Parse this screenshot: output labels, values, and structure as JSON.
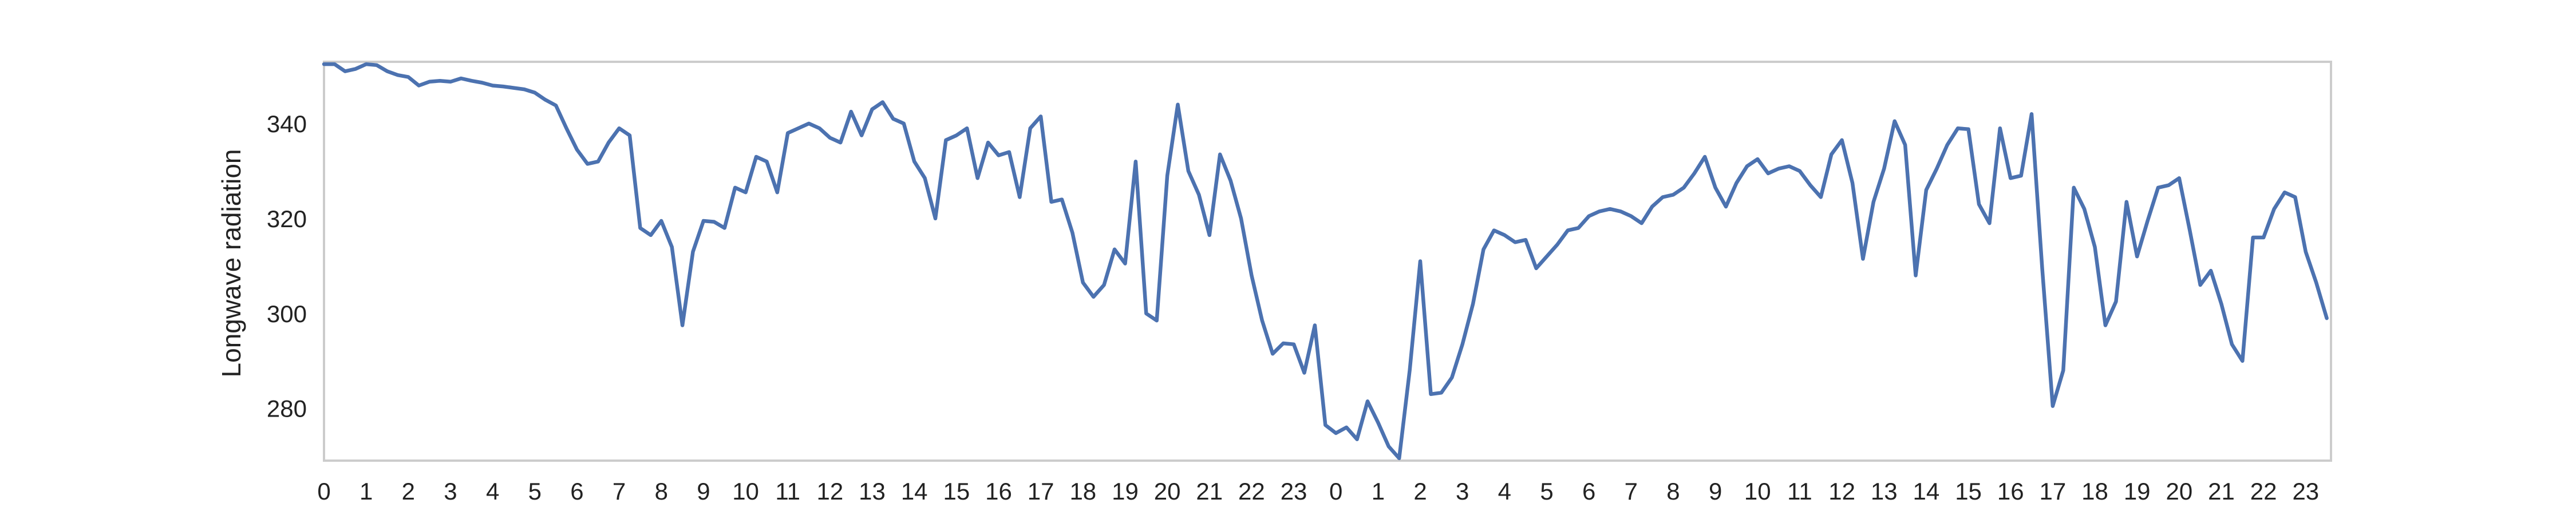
{
  "chart_data": {
    "type": "line",
    "title": "",
    "xlabel": "",
    "ylabel": "Longwave radiation",
    "grid": false,
    "xlim": [
      0,
      47.6
    ],
    "ylim": [
      269,
      353
    ],
    "yticks": [
      280,
      300,
      320,
      340
    ],
    "xticks": [
      {
        "x": 0,
        "label": "0"
      },
      {
        "x": 1,
        "label": "1"
      },
      {
        "x": 2,
        "label": "2"
      },
      {
        "x": 3,
        "label": "3"
      },
      {
        "x": 4,
        "label": "4"
      },
      {
        "x": 5,
        "label": "5"
      },
      {
        "x": 6,
        "label": "6"
      },
      {
        "x": 7,
        "label": "7"
      },
      {
        "x": 8,
        "label": "8"
      },
      {
        "x": 9,
        "label": "9"
      },
      {
        "x": 10,
        "label": "10"
      },
      {
        "x": 11,
        "label": "11"
      },
      {
        "x": 12,
        "label": "12"
      },
      {
        "x": 13,
        "label": "13"
      },
      {
        "x": 14,
        "label": "14"
      },
      {
        "x": 15,
        "label": "15"
      },
      {
        "x": 16,
        "label": "16"
      },
      {
        "x": 17,
        "label": "17"
      },
      {
        "x": 18,
        "label": "18"
      },
      {
        "x": 19,
        "label": "19"
      },
      {
        "x": 20,
        "label": "20"
      },
      {
        "x": 21,
        "label": "21"
      },
      {
        "x": 22,
        "label": "22"
      },
      {
        "x": 23,
        "label": "23"
      },
      {
        "x": 24,
        "label": "0"
      },
      {
        "x": 25,
        "label": "1"
      },
      {
        "x": 26,
        "label": "2"
      },
      {
        "x": 27,
        "label": "3"
      },
      {
        "x": 28,
        "label": "4"
      },
      {
        "x": 29,
        "label": "5"
      },
      {
        "x": 30,
        "label": "6"
      },
      {
        "x": 31,
        "label": "7"
      },
      {
        "x": 32,
        "label": "8"
      },
      {
        "x": 33,
        "label": "9"
      },
      {
        "x": 34,
        "label": "10"
      },
      {
        "x": 35,
        "label": "11"
      },
      {
        "x": 36,
        "label": "12"
      },
      {
        "x": 37,
        "label": "13"
      },
      {
        "x": 38,
        "label": "14"
      },
      {
        "x": 39,
        "label": "15"
      },
      {
        "x": 40,
        "label": "16"
      },
      {
        "x": 41,
        "label": "17"
      },
      {
        "x": 42,
        "label": "18"
      },
      {
        "x": 43,
        "label": "19"
      },
      {
        "x": 44,
        "label": "20"
      },
      {
        "x": 45,
        "label": "21"
      },
      {
        "x": 46,
        "label": "22"
      },
      {
        "x": 47,
        "label": "23"
      }
    ],
    "series": [
      {
        "color": "#4c72b0",
        "points": [
          [
            0,
            352.5
          ],
          [
            0.25,
            352.5
          ],
          [
            0.5,
            351
          ],
          [
            0.75,
            351.5
          ],
          [
            1,
            352.5
          ],
          [
            1.25,
            352.3
          ],
          [
            1.5,
            351
          ],
          [
            1.75,
            350.2
          ],
          [
            2,
            349.8
          ],
          [
            2.25,
            348
          ],
          [
            2.5,
            348.8
          ],
          [
            2.75,
            349
          ],
          [
            3,
            348.8
          ],
          [
            3.25,
            349.5
          ],
          [
            3.5,
            349
          ],
          [
            3.75,
            348.6
          ],
          [
            4,
            348
          ],
          [
            4.25,
            347.8
          ],
          [
            4.5,
            347.5
          ],
          [
            4.75,
            347.2
          ],
          [
            5,
            346.5
          ],
          [
            5.25,
            345
          ],
          [
            5.5,
            343.8
          ],
          [
            5.75,
            339
          ],
          [
            6,
            334.5
          ],
          [
            6.25,
            331.5
          ],
          [
            6.5,
            332
          ],
          [
            6.75,
            336
          ],
          [
            7,
            339
          ],
          [
            7.25,
            337.5
          ],
          [
            7.5,
            318
          ],
          [
            7.75,
            316.5
          ],
          [
            8,
            319.5
          ],
          [
            8.25,
            314
          ],
          [
            8.5,
            297.5
          ],
          [
            8.75,
            313
          ],
          [
            9,
            319.5
          ],
          [
            9.25,
            319.3
          ],
          [
            9.5,
            318
          ],
          [
            9.75,
            326.5
          ],
          [
            10,
            325.5
          ],
          [
            10.25,
            333
          ],
          [
            10.5,
            332
          ],
          [
            10.75,
            325.5
          ],
          [
            11,
            338
          ],
          [
            11.25,
            339
          ],
          [
            11.5,
            340
          ],
          [
            11.75,
            339
          ],
          [
            12,
            337
          ],
          [
            12.25,
            336
          ],
          [
            12.5,
            342.5
          ],
          [
            12.75,
            337.5
          ],
          [
            13,
            343
          ],
          [
            13.25,
            344.5
          ],
          [
            13.5,
            341
          ],
          [
            13.75,
            340
          ],
          [
            14,
            332
          ],
          [
            14.25,
            328.5
          ],
          [
            14.5,
            320
          ],
          [
            14.75,
            336.5
          ],
          [
            15,
            337.5
          ],
          [
            15.25,
            339
          ],
          [
            15.5,
            328.5
          ],
          [
            15.75,
            336
          ],
          [
            16,
            333.3
          ],
          [
            16.25,
            334
          ],
          [
            16.5,
            324.5
          ],
          [
            16.75,
            339
          ],
          [
            17,
            341.5
          ],
          [
            17.25,
            323.5
          ],
          [
            17.5,
            324
          ],
          [
            17.75,
            317
          ],
          [
            18,
            306.5
          ],
          [
            18.25,
            303.5
          ],
          [
            18.5,
            306
          ],
          [
            18.75,
            313.5
          ],
          [
            19,
            310.5
          ],
          [
            19.25,
            332
          ],
          [
            19.5,
            300
          ],
          [
            19.75,
            298.5
          ],
          [
            20,
            329
          ],
          [
            20.25,
            344
          ],
          [
            20.5,
            330
          ],
          [
            20.75,
            325
          ],
          [
            21,
            316.5
          ],
          [
            21.25,
            333.5
          ],
          [
            21.5,
            328
          ],
          [
            21.75,
            320
          ],
          [
            22,
            308
          ],
          [
            22.25,
            298.5
          ],
          [
            22.5,
            291.5
          ],
          [
            22.75,
            293.7
          ],
          [
            23,
            293.5
          ],
          [
            23.25,
            287.5
          ],
          [
            23.5,
            297.5
          ],
          [
            23.75,
            276.5
          ],
          [
            24,
            274.8
          ],
          [
            24.25,
            276
          ],
          [
            24.5,
            273.5
          ],
          [
            24.75,
            281.5
          ],
          [
            25,
            277
          ],
          [
            25.25,
            272
          ],
          [
            25.5,
            269.5
          ],
          [
            25.75,
            288
          ],
          [
            26,
            311
          ],
          [
            26.25,
            283
          ],
          [
            26.5,
            283.3
          ],
          [
            26.75,
            286.5
          ],
          [
            27,
            293.5
          ],
          [
            27.25,
            302
          ],
          [
            27.5,
            313.5
          ],
          [
            27.75,
            317.5
          ],
          [
            28,
            316.5
          ],
          [
            28.25,
            315
          ],
          [
            28.5,
            315.5
          ],
          [
            28.75,
            309.5
          ],
          [
            29,
            312
          ],
          [
            29.25,
            314.5
          ],
          [
            29.5,
            317.5
          ],
          [
            29.75,
            318
          ],
          [
            30,
            320.5
          ],
          [
            30.25,
            321.5
          ],
          [
            30.5,
            322
          ],
          [
            30.75,
            321.5
          ],
          [
            31,
            320.5
          ],
          [
            31.25,
            319
          ],
          [
            31.5,
            322.5
          ],
          [
            31.75,
            324.5
          ],
          [
            32,
            325
          ],
          [
            32.25,
            326.5
          ],
          [
            32.5,
            329.5
          ],
          [
            32.75,
            333
          ],
          [
            33,
            326.5
          ],
          [
            33.25,
            322.5
          ],
          [
            33.5,
            327.5
          ],
          [
            33.75,
            331
          ],
          [
            34,
            332.5
          ],
          [
            34.25,
            329.5
          ],
          [
            34.5,
            330.5
          ],
          [
            34.75,
            331
          ],
          [
            35,
            330
          ],
          [
            35.25,
            327
          ],
          [
            35.5,
            324.5
          ],
          [
            35.75,
            333.5
          ],
          [
            36,
            336.5
          ],
          [
            36.25,
            327.5
          ],
          [
            36.5,
            311.5
          ],
          [
            36.75,
            323.5
          ],
          [
            37,
            330.5
          ],
          [
            37.25,
            340.5
          ],
          [
            37.5,
            335.5
          ],
          [
            37.75,
            308
          ],
          [
            38,
            326
          ],
          [
            38.25,
            330.5
          ],
          [
            38.5,
            335.5
          ],
          [
            38.75,
            339
          ],
          [
            39,
            338.8
          ],
          [
            39.25,
            323
          ],
          [
            39.5,
            319
          ],
          [
            39.75,
            339
          ],
          [
            40,
            328.5
          ],
          [
            40.25,
            329
          ],
          [
            40.5,
            342
          ],
          [
            40.75,
            309.5
          ],
          [
            41,
            280.5
          ],
          [
            41.25,
            288
          ],
          [
            41.5,
            326.5
          ],
          [
            41.75,
            322
          ],
          [
            42,
            314
          ],
          [
            42.25,
            297.5
          ],
          [
            42.5,
            302.5
          ],
          [
            42.75,
            323.5
          ],
          [
            43,
            312
          ],
          [
            43.25,
            319.5
          ],
          [
            43.5,
            326.5
          ],
          [
            43.75,
            327
          ],
          [
            44,
            328.5
          ],
          [
            44.25,
            317.5
          ],
          [
            44.5,
            306
          ],
          [
            44.75,
            309
          ],
          [
            45,
            302
          ],
          [
            45.25,
            293.5
          ],
          [
            45.5,
            290
          ],
          [
            45.75,
            316
          ],
          [
            46,
            316
          ],
          [
            46.25,
            322
          ],
          [
            46.5,
            325.5
          ],
          [
            46.75,
            324.5
          ],
          [
            47,
            313
          ],
          [
            47.25,
            306.5
          ],
          [
            47.5,
            299
          ]
        ]
      }
    ]
  }
}
